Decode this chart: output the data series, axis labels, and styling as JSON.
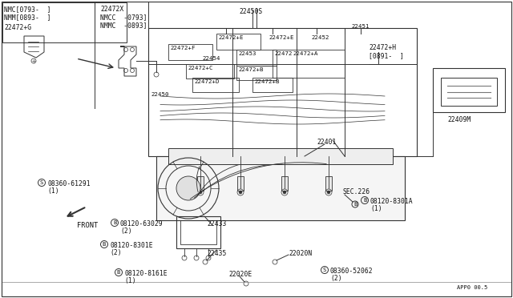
{
  "bg_color": "#ffffff",
  "line_color": "#333333",
  "text_color": "#111111",
  "border_color": "#333333",
  "fs": 5.8,
  "fs_small": 5.0,
  "top_left_notes": [
    "NMC[0793-  ]",
    "NMM[0893-  ]"
  ],
  "top_mid_notes": [
    "22472X",
    "NMCC  -0793]",
    "NMMC  -0893]"
  ],
  "label_22450S": "22450S",
  "label_22472G": "22472+G",
  "label_22450": "22450",
  "label_22454": "22454",
  "label_22472F": "22472+F",
  "label_22472E_1": "22472+E",
  "label_22472E_2": "22472+E",
  "label_22452": "22452",
  "label_22451": "22451",
  "label_22453": "22453",
  "label_22472B_1": "22472+B",
  "label_22472B_2": "22472+B",
  "label_22472": "22472",
  "label_22472A": "22472+A",
  "label_22472H": "22472+H",
  "label_0891": "[0891-  ]",
  "label_22472C": "22472+C",
  "label_22472D": "22472+D",
  "label_22401": "22401",
  "label_22433": "22433",
  "label_22435": "22435",
  "label_22020N": "22020N",
  "label_22020E": "22020E",
  "label_08360_61291": "08360-61291",
  "label_08120_63029": "08120-63029",
  "label_08120_8301E": "08120-8301E",
  "label_08120_8161E": "08120-8161E",
  "label_08120_8301A": "08120-8301A",
  "label_08360_52062": "08360-52062",
  "label_SEC226": "SEC.226",
  "label_22409M": "22409M",
  "label_front": "FRONT",
  "label_pageref": "APP0 00.5",
  "label_qty1": "(1)",
  "label_qty2": "(2)"
}
